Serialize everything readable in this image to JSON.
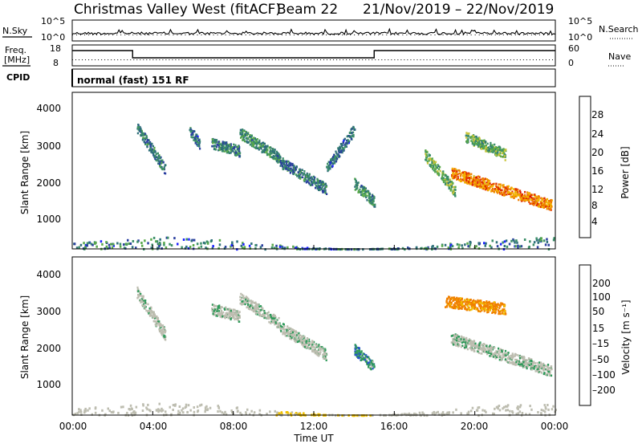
{
  "title": {
    "station": "Christmas Valley West (fitACF)",
    "beam": "Beam 22",
    "date_range": "21/Nov/2019 – 22/Nov/2019"
  },
  "header_panels": {
    "nsky_label": "N.Sky",
    "nsearch_label": "N.Search",
    "freq_label_1": "Freq.",
    "freq_label_2": "[MHz]",
    "nave_label": "Nave",
    "cpid_label": "CPID",
    "cpid_text": "normal (fast) 151 RF",
    "noise_ticks_left": [
      "10^5",
      "10^0"
    ],
    "noise_ticks_right": [
      "10^5",
      "10^0"
    ],
    "freq_ticks": [
      "18",
      "8"
    ],
    "nave_ticks": [
      "60",
      "0"
    ]
  },
  "x_axis": {
    "label": "Time UT",
    "ticks": [
      "00:00",
      "04:00",
      "08:00",
      "12:00",
      "16:00",
      "20:00",
      "00:00"
    ]
  },
  "power_panel": {
    "ylabel": "Slant Range [km]",
    "yticks": [
      "4000",
      "3000",
      "2000",
      "1000"
    ],
    "colorbar_label": "Power [dB]",
    "colorbar_ticks": [
      "28",
      "24",
      "20",
      "16",
      "12",
      "8",
      "4"
    ]
  },
  "velocity_panel": {
    "ylabel": "Slant Range [km]",
    "yticks": [
      "4000",
      "3000",
      "2000",
      "1000"
    ],
    "colorbar_label": "Velocity [m s⁻¹]",
    "colorbar_ticks": [
      "200",
      "100",
      "50",
      "15",
      "–15",
      "–50",
      "–100",
      "–200"
    ]
  },
  "chart_data": [
    {
      "type": "heatmap",
      "name": "power",
      "x_range_hours": [
        0,
        24
      ],
      "ylim": [
        180,
        4500
      ],
      "colorbar_range": [
        0,
        32
      ],
      "colors": [
        "#1c22ff",
        "#2b3fa0",
        "#2e6f7a",
        "#3b8e68",
        "#57a84a",
        "#c9c43a",
        "#f2b200",
        "#f07f00",
        "#e03000",
        "#d40000"
      ],
      "echo_regions": [
        {
          "t_start": 3.2,
          "t_end": 4.6,
          "r_start": 3550,
          "r_end": 2400,
          "power": 9
        },
        {
          "t_start": 5.8,
          "t_end": 6.3,
          "r_start": 3500,
          "r_end": 3100,
          "power": 8
        },
        {
          "t_start": 6.9,
          "t_end": 8.3,
          "r_start": 3100,
          "r_end": 2900,
          "power": 9
        },
        {
          "t_start": 8.3,
          "t_end": 10.3,
          "r_start": 3400,
          "r_end": 2700,
          "power": 11
        },
        {
          "t_start": 10.3,
          "t_end": 12.6,
          "r_start": 2600,
          "r_end": 1850,
          "power": 9
        },
        {
          "t_start": 12.6,
          "t_end": 14.0,
          "r_start": 2400,
          "r_end": 3500,
          "power": 8
        },
        {
          "t_start": 14.0,
          "t_end": 15.0,
          "r_start": 2000,
          "r_end": 1500,
          "power": 11
        },
        {
          "t_start": 17.5,
          "t_end": 19.0,
          "r_start": 2800,
          "r_end": 1800,
          "power": 14
        },
        {
          "t_start": 18.8,
          "t_end": 23.8,
          "r_start": 2300,
          "r_end": 1400,
          "power": 24
        },
        {
          "t_start": 19.5,
          "t_end": 21.5,
          "r_start": 3300,
          "r_end": 2800,
          "power": 13
        }
      ],
      "ground_scatter_band_km": [
        200,
        520
      ]
    },
    {
      "type": "heatmap",
      "name": "velocity",
      "x_range_hours": [
        0,
        24
      ],
      "ylim": [
        180,
        4500
      ],
      "colorbar_range": [
        -250,
        250
      ],
      "colors": [
        "#1b1fa8",
        "#2a55c8",
        "#2f9a5a",
        "#7bd04c",
        "#bdbdb0",
        "#f0c000",
        "#f08000",
        "#f04000",
        "#e00000"
      ],
      "echo_regions": [
        {
          "t_start": 3.2,
          "t_end": 4.6,
          "r_start": 3550,
          "r_end": 2400,
          "velocity": 0
        },
        {
          "t_start": 6.9,
          "t_end": 8.3,
          "r_start": 3100,
          "r_end": 2900,
          "velocity": 0
        },
        {
          "t_start": 8.3,
          "t_end": 10.3,
          "r_start": 3400,
          "r_end": 2700,
          "velocity": 0
        },
        {
          "t_start": 10.3,
          "t_end": 12.6,
          "r_start": 2600,
          "r_end": 1850,
          "velocity": 0
        },
        {
          "t_start": 14.0,
          "t_end": 15.0,
          "r_start": 2000,
          "r_end": 1500,
          "velocity": 40
        },
        {
          "t_start": 18.8,
          "t_end": 23.8,
          "r_start": 2300,
          "r_end": 1400,
          "velocity": 0
        },
        {
          "t_start": 18.5,
          "t_end": 21.5,
          "r_start": 3300,
          "r_end": 3100,
          "velocity": -120
        }
      ],
      "ground_scatter_band_km": [
        200,
        520
      ]
    }
  ]
}
